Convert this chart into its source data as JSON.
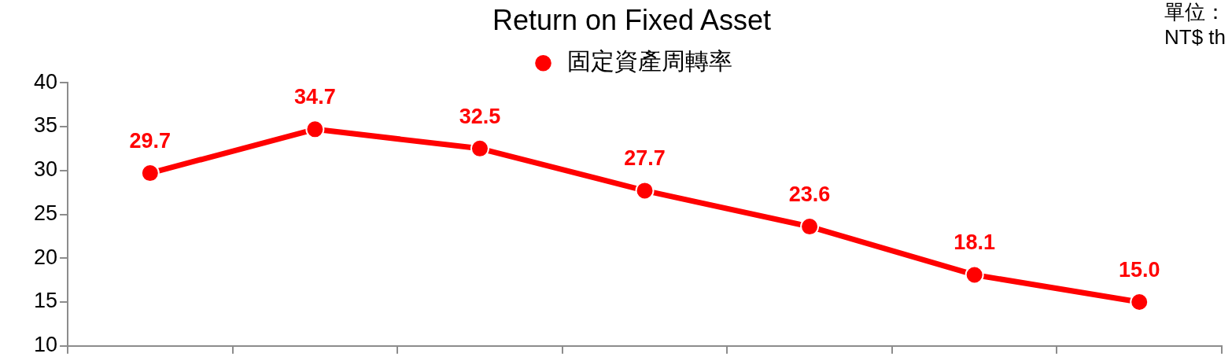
{
  "chart_data": {
    "type": "line",
    "title": "Return on Fixed Asset",
    "annotations": [
      "單位：",
      "NT$ th"
    ],
    "categories": [
      null,
      null,
      null,
      null,
      null,
      null,
      null
    ],
    "series": [
      {
        "name": "固定資產周轉率",
        "color": "#ff0000",
        "values": [
          29.7,
          34.7,
          32.5,
          27.7,
          23.6,
          18.1,
          15.0
        ],
        "value_labels": [
          "29.7",
          "34.7",
          "32.5",
          "27.7",
          "23.6",
          "18.1",
          "15.0"
        ]
      }
    ],
    "ylim": [
      10,
      40
    ],
    "yticks": [
      10,
      15,
      20,
      25,
      30,
      35,
      40
    ],
    "grid": false,
    "legend": "top",
    "tick_labels": "y",
    "marker": "circle",
    "line_style": "solid"
  }
}
